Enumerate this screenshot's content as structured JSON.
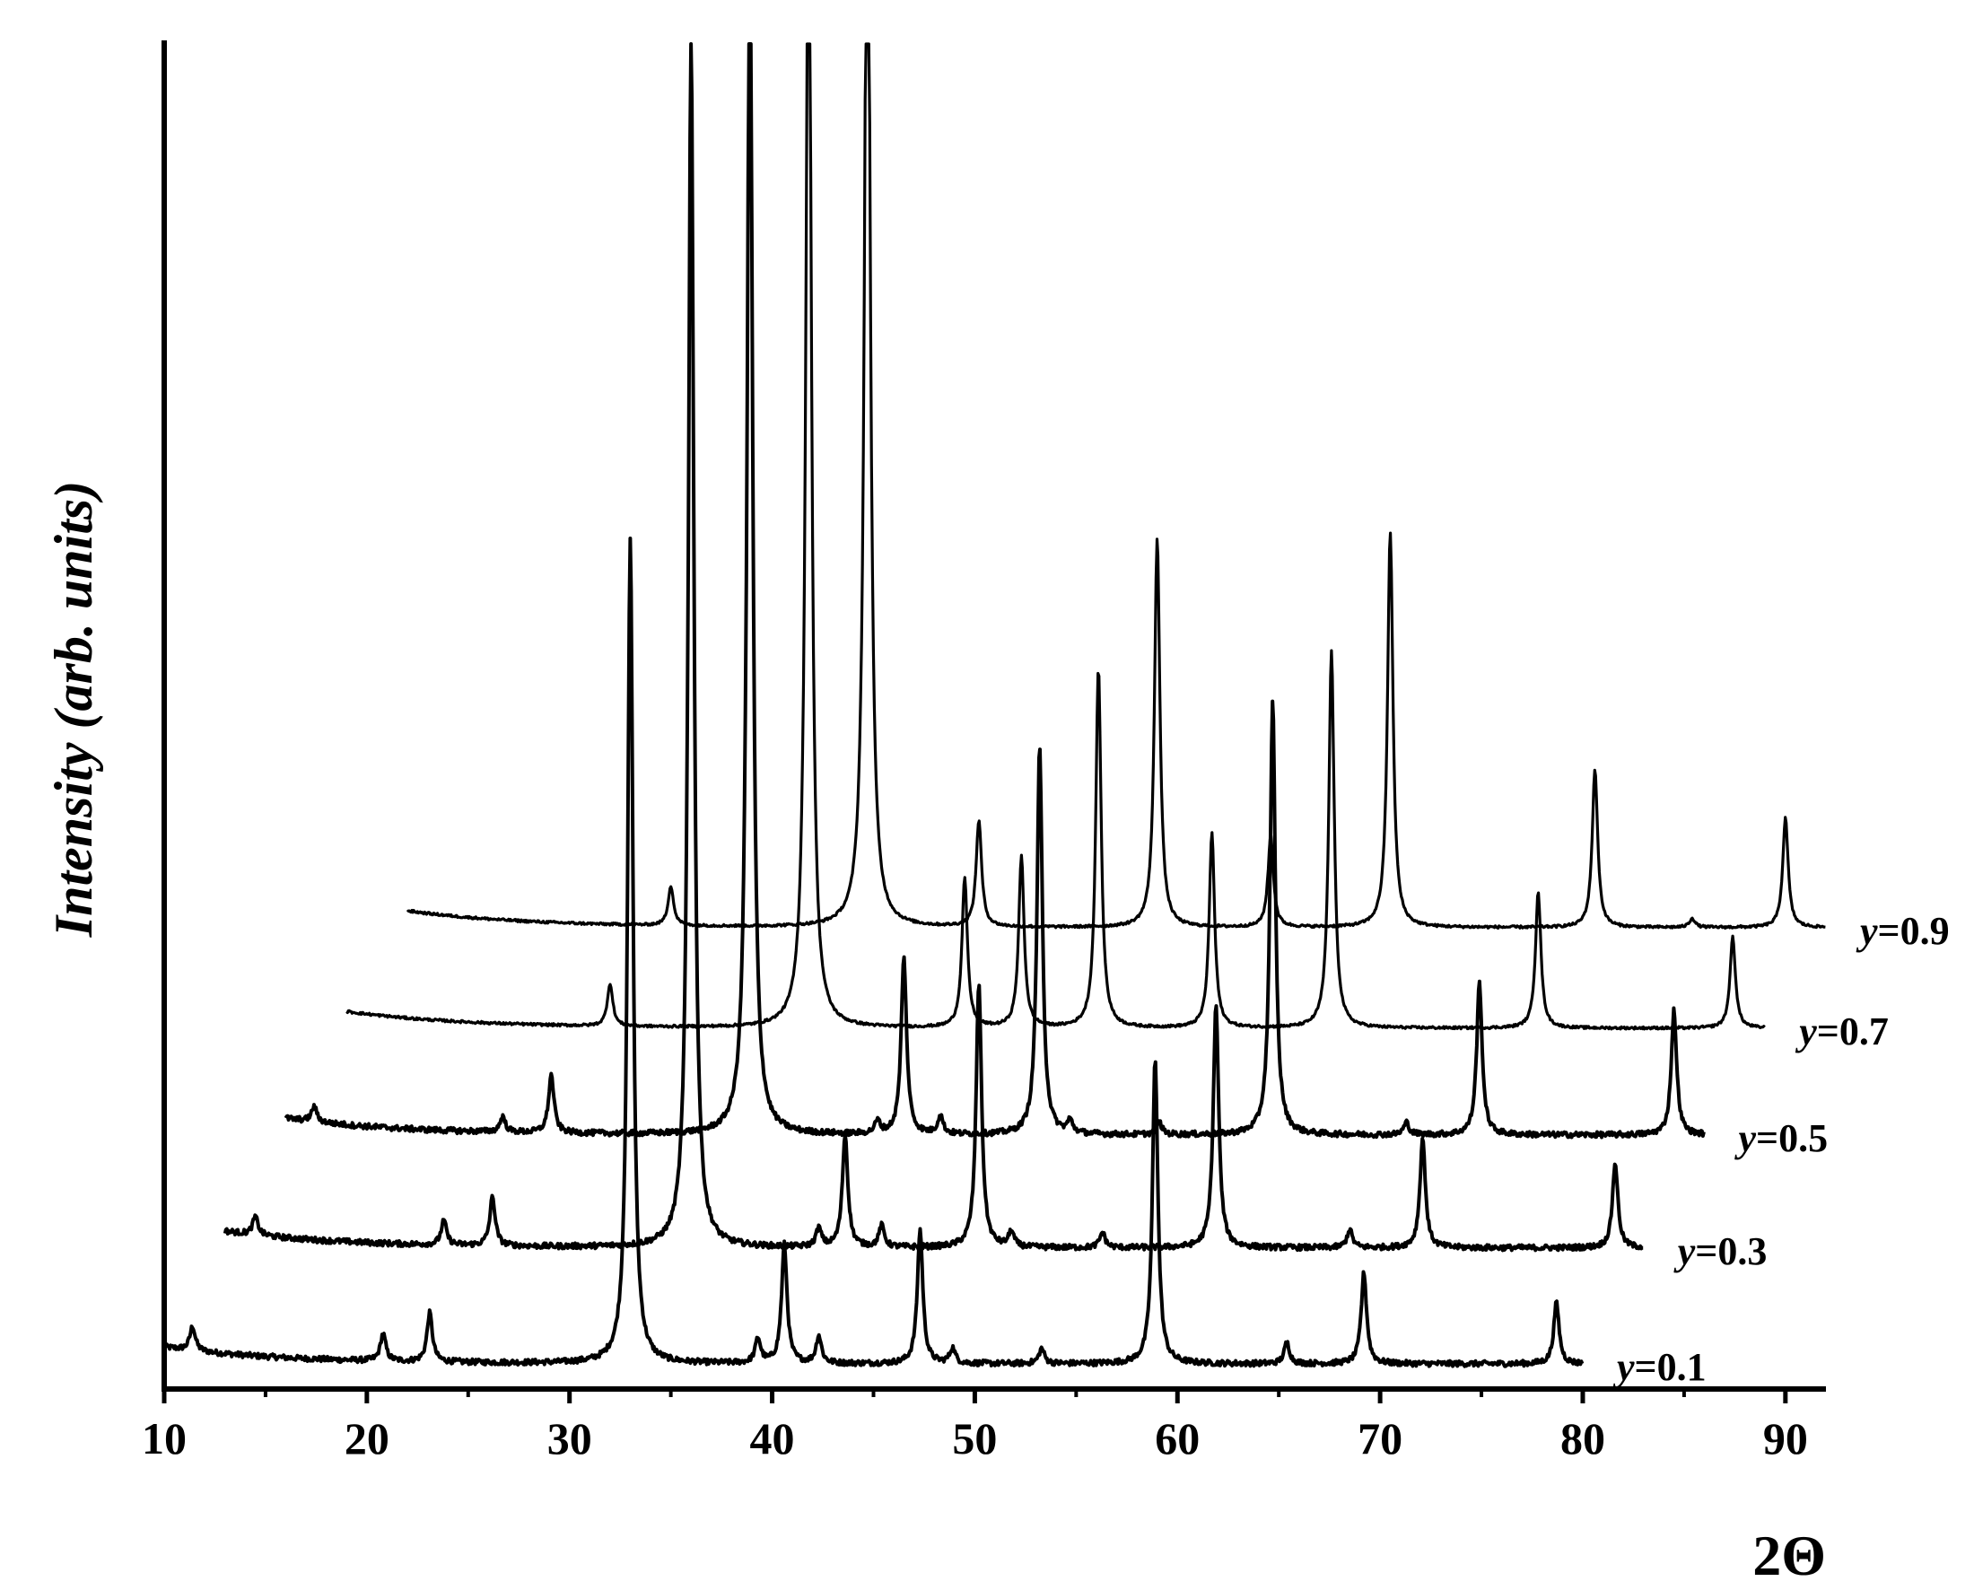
{
  "chart_data": {
    "type": "line",
    "subtype": "stacked-offset-xrd-patterns",
    "xlabel": "2Θ",
    "ylabel": "Intensity (arb. units)",
    "xlim": [
      10,
      92
    ],
    "xticks": [
      10,
      20,
      30,
      40,
      50,
      60,
      70,
      80,
      90
    ],
    "grid": false,
    "yticks_shown": false,
    "series": [
      {
        "name": "y=0.1",
        "label_var": "y",
        "label_value": "=0.1",
        "x_range": [
          10,
          80
        ],
        "offset_units": 0.0,
        "peaks": [
          {
            "x": 11.4,
            "h": 0.8
          },
          {
            "x": 20.8,
            "h": 0.9
          },
          {
            "x": 23.1,
            "h": 1.6
          },
          {
            "x": 33.0,
            "h": 27.0
          },
          {
            "x": 39.3,
            "h": 0.8
          },
          {
            "x": 40.6,
            "h": 3.9
          },
          {
            "x": 42.3,
            "h": 0.9
          },
          {
            "x": 47.3,
            "h": 4.4
          },
          {
            "x": 48.9,
            "h": 0.5
          },
          {
            "x": 53.3,
            "h": 0.5
          },
          {
            "x": 58.9,
            "h": 10.0
          },
          {
            "x": 65.4,
            "h": 0.7
          },
          {
            "x": 69.2,
            "h": 3.0
          },
          {
            "x": 78.7,
            "h": 2.0
          }
        ]
      },
      {
        "name": "y=0.3",
        "label_var": "y",
        "label_value": "=0.3",
        "x_range": [
          13,
          83
        ],
        "offset_units": 3.8,
        "peaks": [
          {
            "x": 14.5,
            "h": 0.6
          },
          {
            "x": 23.8,
            "h": 0.8
          },
          {
            "x": 26.2,
            "h": 1.6
          },
          {
            "x": 36.0,
            "h": 40.0
          },
          {
            "x": 42.3,
            "h": 0.6
          },
          {
            "x": 43.6,
            "h": 3.7
          },
          {
            "x": 45.4,
            "h": 0.7
          },
          {
            "x": 50.2,
            "h": 8.7
          },
          {
            "x": 51.8,
            "h": 0.5
          },
          {
            "x": 56.3,
            "h": 0.5
          },
          {
            "x": 61.9,
            "h": 8.0
          },
          {
            "x": 68.5,
            "h": 0.6
          },
          {
            "x": 72.1,
            "h": 3.6
          },
          {
            "x": 81.6,
            "h": 2.8
          }
        ]
      },
      {
        "name": "y=0.5",
        "label_var": "y",
        "label_value": "=0.5",
        "x_range": [
          16,
          86
        ],
        "offset_units": 7.5,
        "peaks": [
          {
            "x": 17.4,
            "h": 0.5
          },
          {
            "x": 26.7,
            "h": 0.5
          },
          {
            "x": 29.1,
            "h": 1.9
          },
          {
            "x": 38.9,
            "h": 40.0
          },
          {
            "x": 45.2,
            "h": 0.4
          },
          {
            "x": 46.5,
            "h": 5.8
          },
          {
            "x": 48.3,
            "h": 0.6
          },
          {
            "x": 53.2,
            "h": 12.7
          },
          {
            "x": 54.7,
            "h": 0.4
          },
          {
            "x": 59.1,
            "h": 0.4
          },
          {
            "x": 64.7,
            "h": 14.2
          },
          {
            "x": 71.3,
            "h": 0.4
          },
          {
            "x": 74.9,
            "h": 5.0
          },
          {
            "x": 84.5,
            "h": 4.1
          }
        ]
      },
      {
        "name": "y=0.7",
        "label_var": "y",
        "label_value": "=0.7",
        "x_range": [
          19,
          89
        ],
        "offset_units": 11.0,
        "peaks": [
          {
            "x": 32.0,
            "h": 1.4
          },
          {
            "x": 41.8,
            "h": 40.0
          },
          {
            "x": 49.5,
            "h": 4.9
          },
          {
            "x": 52.3,
            "h": 5.6
          },
          {
            "x": 56.1,
            "h": 11.8
          },
          {
            "x": 61.7,
            "h": 6.4
          },
          {
            "x": 67.6,
            "h": 12.4
          },
          {
            "x": 77.8,
            "h": 4.5
          },
          {
            "x": 87.4,
            "h": 3.0
          }
        ]
      },
      {
        "name": "y=0.9",
        "label_var": "y",
        "label_value": "=0.9",
        "x_range": [
          22,
          92
        ],
        "offset_units": 14.3,
        "peaks": [
          {
            "x": 35.0,
            "h": 1.3
          },
          {
            "x": 44.7,
            "h": 40.0
          },
          {
            "x": 50.2,
            "h": 3.5
          },
          {
            "x": 59.0,
            "h": 12.8
          },
          {
            "x": 64.6,
            "h": 3.0
          },
          {
            "x": 70.5,
            "h": 13.0
          },
          {
            "x": 80.6,
            "h": 5.2
          },
          {
            "x": 85.4,
            "h": 0.3
          },
          {
            "x": 90.0,
            "h": 3.6
          }
        ]
      }
    ]
  }
}
